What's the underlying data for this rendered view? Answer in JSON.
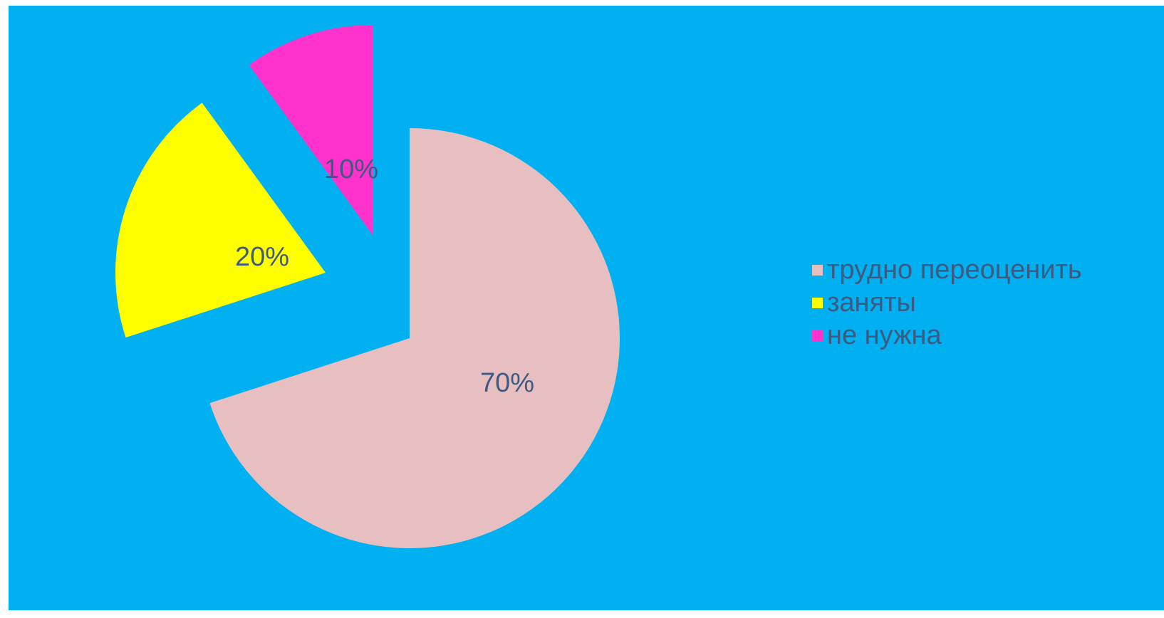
{
  "chart_data": {
    "type": "pie",
    "title": "",
    "slices": [
      {
        "label": "трудно переоценить",
        "value": 70,
        "value_label": "70%",
        "color": "#E8BFC0"
      },
      {
        "label": "заняты",
        "value": 20,
        "value_label": "20%",
        "color": "#FFFF00"
      },
      {
        "label": "не нужна",
        "value": 10,
        "value_label": "10%",
        "color": "#FF33CC"
      }
    ],
    "background_color": "#00B0F0",
    "label_color": "#3D5A80",
    "legend_position": "right"
  }
}
